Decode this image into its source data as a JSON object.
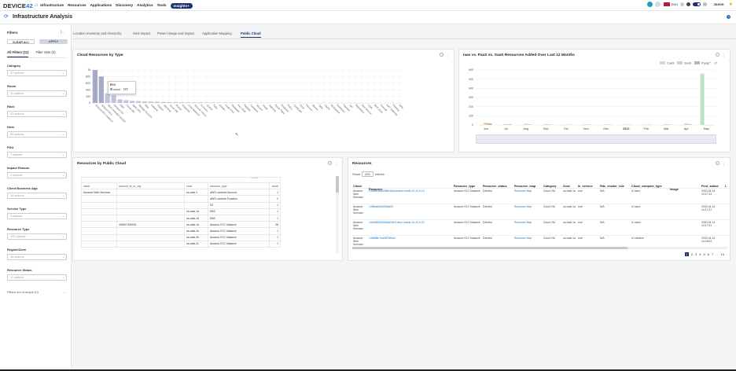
{
  "nav": {
    "logo_a": "DEVICE",
    "logo_b": "42",
    "items": [
      "Infrastructure",
      "Resources",
      "Applications",
      "Discovery",
      "Analytics",
      "Tools"
    ],
    "insights": "Insights+",
    "lang": "ENG",
    "user": "Jason"
  },
  "page": {
    "title": "Infrastructure Analysis",
    "help": "?"
  },
  "filters": {
    "title": "Filters",
    "clear": "CLEAR ALL",
    "apply": "APPLY",
    "tab_all": "All Filters (11)",
    "tab_sets": "Filter Sets (0)",
    "groups": [
      {
        "label": "Category",
        "value": "37 options"
      },
      {
        "label": "Room",
        "value": "11 options"
      },
      {
        "label": "Rack",
        "value": "43 options"
      },
      {
        "label": "Host",
        "value": "69 options"
      },
      {
        "label": "PDU",
        "value": "7 options"
      },
      {
        "label": "Impact Reason",
        "value": "2 options"
      },
      {
        "label": "Client Business App",
        "value": "16 options"
      },
      {
        "label": "Service Type",
        "value": "3 options"
      },
      {
        "label": "Resource Type",
        "value": "391 options"
      },
      {
        "label": "Region/Zone",
        "value": "40 options"
      },
      {
        "label": "Resource Status",
        "value": "11 options"
      }
    ],
    "out_of_scope": "Filters out of scope (0)"
  },
  "tabs": [
    "Location Inventory and Hierarchy",
    "Host Impact",
    "Power Usage and Impact",
    "Application Mapping",
    "Public Cloud"
  ],
  "cloud_resources": {
    "title": "Cloud Resources by Type",
    "tooltip_title": "EC2",
    "tooltip_label": "count",
    "tooltip_value": "777",
    "chart_data": {
      "type": "bar",
      "values": [
        1100,
        880,
        320,
        260,
        120,
        90,
        70,
        60,
        50,
        45,
        40,
        35,
        30,
        28,
        26,
        24,
        22,
        20,
        18,
        16,
        15,
        14,
        13,
        12,
        11,
        10,
        9,
        8,
        7,
        7,
        6,
        6,
        5,
        5,
        4,
        4,
        3,
        3,
        3,
        2,
        2,
        2,
        2,
        1,
        1,
        1,
        1,
        1,
        1,
        1
      ],
      "ylim": [
        0,
        1100
      ],
      "ytick_labels": [
        "1k",
        "800",
        "600",
        "400",
        "200",
        "0"
      ],
      "xtick_labels": [
        "Amazon EC2 Instance",
        "Amazon EC2",
        "RDS Lambda Function",
        "Amazon S3",
        "EBS",
        "Cloud VM",
        "AWS VPC",
        "Storage Account",
        "Disk",
        "Network",
        "Subnet",
        "IAM Role",
        "Azure VM",
        "Bucket",
        "Snapshot",
        "Load Balancer",
        "Security Group",
        "Function",
        "Queue",
        "Topic",
        "Cluster",
        "Node Pool",
        "Database",
        "Key Vault",
        "Registry",
        "Container",
        "Volume",
        "Image",
        "Gateway",
        "Route Table",
        "Endpoint",
        "Policy",
        "Certificate",
        "Zone",
        "Record",
        "Stream",
        "Table",
        "Cache",
        "Workspace",
        "Notebook",
        "Pipeline",
        "Job",
        "Repository",
        "App Service",
        "CDN",
        "DNS Zone",
        "Firewall",
        "NAT Gateway",
        "Peering",
        "VPN"
      ]
    }
  },
  "iaas": {
    "title": "Iaas vs. PaaS vs. SaaS Resources Added Over Last 12 Months",
    "chart_data": {
      "type": "bar",
      "categories": [
        "Jun",
        "Jul",
        "Aug",
        "Sep",
        "Oct",
        "Nov",
        "Dec",
        "2022",
        "Feb",
        "Mar",
        "Apr",
        "May"
      ],
      "ylim": [
        0,
        600
      ],
      "ytick_labels": [
        "600",
        "500",
        "400",
        "300",
        "200",
        "100",
        "0"
      ],
      "legend": "top-right",
      "series": [
        {
          "name": "CaaS",
          "color": "#bfe3c8",
          "values": [
            0,
            0,
            0,
            0,
            0,
            0,
            0,
            0,
            0,
            0,
            0,
            560
          ]
        },
        {
          "name": "SaaS",
          "color": "#f2c7a3",
          "values": [
            25,
            10,
            12,
            8,
            4,
            6,
            5,
            5,
            4,
            8,
            15,
            0
          ]
        },
        {
          "name": "PaaS",
          "color": "#b5b5b5",
          "values": [
            18,
            6,
            5,
            4,
            3,
            3,
            3,
            2,
            2,
            3,
            6,
            0
          ]
        }
      ]
    }
  },
  "by_cloud": {
    "title": "Resources by Public Cloud",
    "metric": "metric",
    "cols": [
      "cloud",
      "account_id_or_org",
      "zone",
      "resource_type",
      "count"
    ],
    "rows": [
      [
        "Amazon Web Services",
        "",
        "us-east-1",
        "AWS Lambda Account",
        "1"
      ],
      [
        "",
        "",
        "",
        "AWS Lambda Function",
        "2"
      ],
      [
        "",
        "",
        "",
        "S3",
        "1"
      ],
      [
        "",
        "",
        "us-east-1a",
        "EBS",
        "1"
      ],
      [
        "",
        "",
        "us-east-1d",
        "EBS",
        "1"
      ],
      [
        "",
        "408497383001",
        "us-east-1a",
        "Amazon EC2 Instance",
        "28"
      ],
      [
        "",
        "",
        "us-east-2a",
        "Amazon EC2 Instance",
        "1"
      ],
      [
        "",
        "",
        "us-east-2b",
        "Amazon EC2 Instance",
        "1"
      ],
      [
        "",
        "",
        "us-east-2c",
        "Amazon EC2 Instance",
        "1"
      ]
    ]
  },
  "resources": {
    "title": "Resources",
    "show": "Show",
    "page_size": "200",
    "entries": "entries",
    "cols": [
      "Cloud",
      "Resource",
      "Resource_type",
      "Resource_status",
      "Resource_map",
      "Category",
      "Zone",
      "In_service",
      "Rds_cluster_role",
      "Cloud_compute_type",
      "Image",
      "First_added",
      "L"
    ],
    "rows": [
      [
        "Amazon Web Services",
        "i-0b0bb3ea0085e1fa0ufuctvr1mhdh-10.10.0.14",
        "Amazon EC2 Instance",
        "Deleted",
        "Resource Map",
        "Cloud VM",
        "us-east-1a",
        "true",
        "N/A",
        "t2.nano",
        "",
        "2020-04-14 14:17:13"
      ],
      [
        "Amazon Web Services",
        "i-0f8dcb83eb0f3af29",
        "Amazon EC2 Instance",
        "Deleted",
        "Resource Map",
        "Cloud VM",
        "us-east-1a",
        "true",
        "N/A",
        "t2.nano",
        "",
        "2020-04-14 14:17:37"
      ],
      [
        "Amazon Web Services",
        "i-0eb0850520a0a01fe3-linux-oracle-10.10.0.22",
        "Amazon EC2 Instance",
        "Deleted",
        "Resource Map",
        "Cloud VM",
        "us-east-1a",
        "true",
        "N/A",
        "t1.micro",
        "",
        "2020-04-14 14:17:51"
      ],
      [
        "Amazon Web Services",
        "i-08e88e7ea4870ffea2",
        "Amazon EC2 Instance",
        "Deleted",
        "Resource Map",
        "Cloud VM",
        "us-east-1a",
        "true",
        "N/A",
        "t2.medium",
        "",
        "2020-04-14 14:18:02"
      ]
    ],
    "pages": [
      "1",
      "2",
      "3",
      "4",
      "5",
      "6",
      "7",
      "...",
      "15"
    ]
  }
}
